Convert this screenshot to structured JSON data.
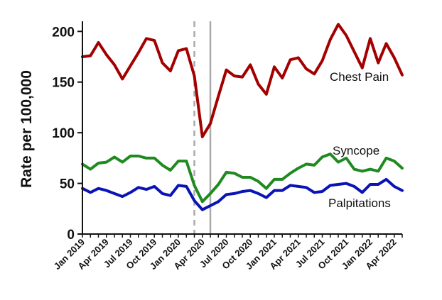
{
  "chart_data": {
    "type": "line",
    "title": "",
    "xlabel": "",
    "ylabel": "Rate per 100,000",
    "ylim": [
      0,
      210
    ],
    "yticks": [
      0,
      50,
      100,
      150,
      200
    ],
    "grid": false,
    "legend": "inline-labels-right",
    "x_start": "Jan 2019",
    "x_tick_labels": [
      "Jan 2019",
      "Apr 2019",
      "Jul 2019",
      "Oct 2019",
      "Jan 2020",
      "Apr 2020",
      "Jul 2020",
      "Oct 2020",
      "Jan 2021",
      "Apr 2021",
      "Jul 2021",
      "Oct 2021",
      "Jan 2022",
      "Apr 2022"
    ],
    "x_tick_months": [
      0,
      3,
      6,
      9,
      12,
      15,
      18,
      21,
      24,
      27,
      30,
      33,
      36,
      39
    ],
    "reference_lines": [
      {
        "month": 14,
        "style": "dashed",
        "color": "#aaaaaa"
      },
      {
        "month": 16,
        "style": "solid",
        "color": "#aaaaaa"
      }
    ],
    "series": [
      {
        "name": "Chest Pain",
        "color": "#a30000",
        "values": [
          175,
          176,
          189,
          177,
          167,
          153,
          166,
          179,
          193,
          191,
          169,
          161,
          181,
          183,
          156,
          96,
          109,
          136,
          162,
          156,
          155,
          167,
          148,
          138,
          165,
          154,
          172,
          174,
          163,
          158,
          171,
          192,
          207,
          196,
          180,
          164,
          193,
          169,
          188,
          174,
          157
        ]
      },
      {
        "name": "Syncope",
        "color": "#1f8a1f",
        "values": [
          69,
          64,
          70,
          71,
          76,
          71,
          77,
          77,
          75,
          75,
          68,
          63,
          72,
          72,
          48,
          32,
          40,
          49,
          61,
          60,
          56,
          56,
          52,
          45,
          54,
          54,
          60,
          65,
          69,
          68,
          76,
          79,
          71,
          75,
          64,
          62,
          64,
          62,
          75,
          72,
          65
        ]
      },
      {
        "name": "Palpitations",
        "color": "#0a14b5",
        "values": [
          45,
          41,
          45,
          43,
          40,
          37,
          41,
          46,
          44,
          47,
          40,
          38,
          48,
          47,
          33,
          24,
          28,
          32,
          39,
          40,
          42,
          43,
          40,
          36,
          43,
          43,
          48,
          47,
          46,
          41,
          42,
          48,
          49,
          50,
          47,
          41,
          49,
          49,
          54,
          47,
          43
        ]
      }
    ]
  }
}
